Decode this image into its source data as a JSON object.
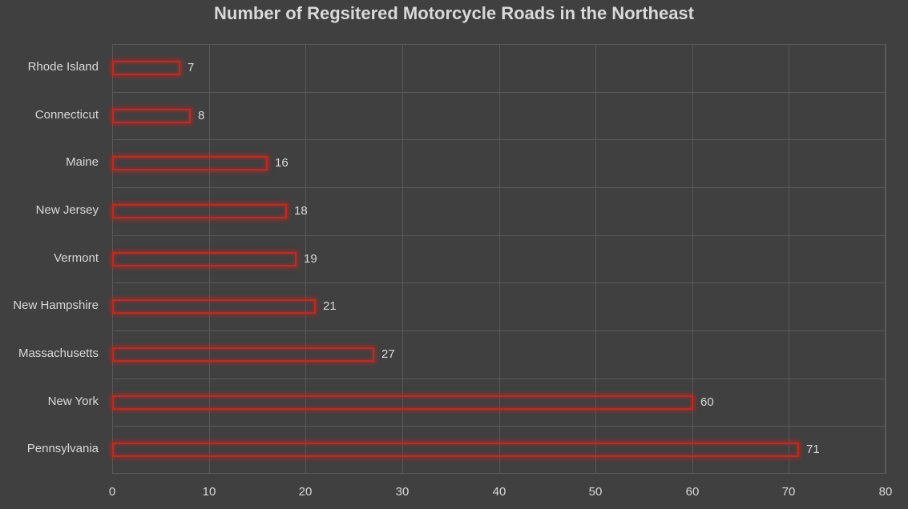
{
  "chart_data": {
    "type": "bar",
    "orientation": "horizontal",
    "title": "Number of Regsitered Motorcycle Roads in the Northeast",
    "xlabel": "",
    "ylabel": "",
    "categories": [
      "Rhode Island",
      "Connecticut",
      "Maine",
      "New Jersey",
      "Vermont",
      "New Hampshire",
      "Massachusetts",
      "New York",
      "Pennsylvania"
    ],
    "values": [
      7,
      8,
      16,
      18,
      19,
      21,
      27,
      60,
      71
    ],
    "xlim": [
      0,
      80
    ],
    "xticks": [
      "0",
      "10",
      "20",
      "30",
      "40",
      "50",
      "60",
      "70",
      "80"
    ],
    "grid": true,
    "legend": null,
    "data_labels": true,
    "colors": {
      "background": "#404040",
      "grid": "#595959",
      "bar_outline": "#c8261e",
      "text": "#d9d9d9"
    }
  }
}
